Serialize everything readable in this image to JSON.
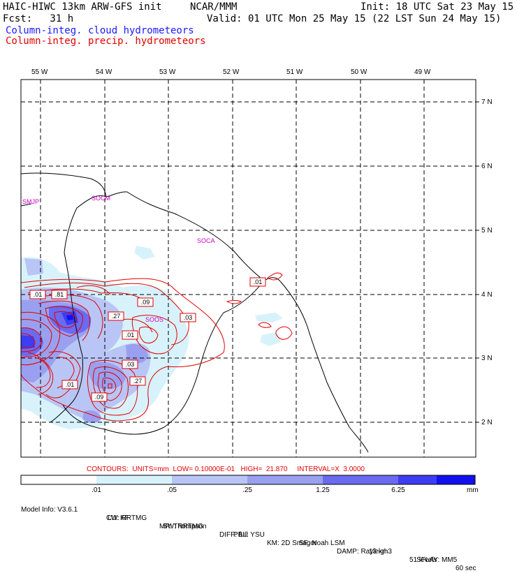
{
  "header": {
    "model": "HAIC-HIWC 13km ARW-GFS init",
    "center": "NCAR/MMM",
    "init": "Init: 18 UTC Sat 23 May 15",
    "fcst": "Fcst:   31 h",
    "valid": "Valid: 01 UTC Mon 25 May 15 (22 LST Sun 24 May 15)",
    "field_cloud": "Column-integ. cloud hydrometeors",
    "field_precip": "Column-integ. precip. hydrometeors"
  },
  "map": {
    "lon_labels": [
      "55 W",
      "54 W",
      "53 W",
      "52 W",
      "51 W",
      "50 W",
      "49 W"
    ],
    "lat_labels": [
      "7 N",
      "6 N",
      "5 N",
      "4 N",
      "3 N",
      "2 N"
    ],
    "stations": [
      "SMJP",
      "SOCM",
      "SOCA",
      "SOOS"
    ],
    "contour_labels": [
      ".01",
      ".01",
      ".81",
      ".09",
      ".27",
      ".03",
      ".01",
      ".03",
      ".27",
      ".01",
      ".09"
    ],
    "colors": {
      "cloud": "#1a1aff",
      "precip": "#e00000",
      "station": "#cc00cc"
    }
  },
  "contours_line": {
    "contours": "CONTOURS:",
    "units": "UNITS=mm",
    "low": "LOW= 0.10000E-01",
    "high": "HIGH=  21.870",
    "interval": "INTERVAL=X  3.0000"
  },
  "colorbar": {
    "ticks": [
      ".01",
      ".05",
      ".25",
      "1.25",
      "6.25"
    ],
    "unit": "mm",
    "colors": [
      "#ffffff",
      "#d8f2fb",
      "#b9c5f5",
      "#9aa0ef",
      "#6b6bf0",
      "#3d3df3",
      "#1111ee"
    ]
  },
  "model_info": {
    "line1": [
      "Model Info: V3.6.1",
      "CU: KF",
      "MP: Thompson",
      "PBL: YSU",
      "SF: Noah LSM",
      "13 km",
      "51 levels",
      "60 sec"
    ],
    "line2": [
      "LW: RRTMG",
      "SW: RRTMG",
      "DIFF: full",
      "KM: 2D Smagor",
      "DAMP: Rayleigh3",
      "SFLAY: MM5"
    ]
  }
}
